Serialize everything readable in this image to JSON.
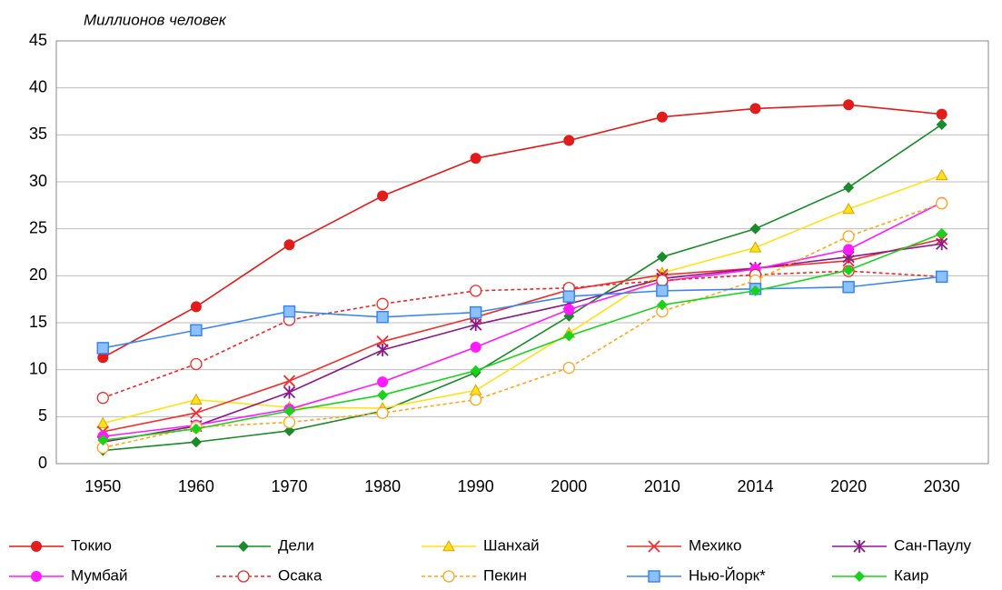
{
  "chart_data": {
    "type": "line",
    "y_label": "Миллионов человек",
    "categories": [
      "1950",
      "1960",
      "1970",
      "1980",
      "1990",
      "2000",
      "2010",
      "2014",
      "2020",
      "2030"
    ],
    "ylim": [
      0,
      45
    ],
    "yticks": [
      0,
      5,
      10,
      15,
      20,
      25,
      30,
      35,
      40,
      45
    ],
    "grid": true,
    "series": [
      {
        "name": "Токио",
        "color": "#e21b1b",
        "marker": "circle",
        "values": [
          11.3,
          16.7,
          23.3,
          28.5,
          32.5,
          34.4,
          36.9,
          37.8,
          38.2,
          37.2
        ]
      },
      {
        "name": "Дели",
        "color": "#1a8a2a",
        "marker": "diamond",
        "values": [
          1.4,
          2.3,
          3.5,
          5.6,
          9.7,
          15.7,
          22.0,
          25.0,
          29.4,
          36.1
        ]
      },
      {
        "name": "Шанхай",
        "color": "#ffe21a",
        "marker": "triangle",
        "values": [
          4.3,
          6.8,
          6.0,
          5.9,
          7.8,
          13.9,
          20.3,
          23.0,
          27.1,
          30.7
        ]
      },
      {
        "name": "Мехико",
        "color": "#f03030",
        "marker": "x",
        "values": [
          3.4,
          5.4,
          8.8,
          13.0,
          15.6,
          18.5,
          20.1,
          20.8,
          21.6,
          23.9
        ]
      },
      {
        "name": "Сан-Паулу",
        "color": "#8b1a8b",
        "marker": "star",
        "values": [
          2.3,
          4.0,
          7.6,
          12.1,
          14.8,
          17.0,
          19.7,
          20.8,
          22.0,
          23.4
        ]
      },
      {
        "name": "Мумбай",
        "color": "#ff1aff",
        "marker": "circle",
        "values": [
          2.9,
          4.1,
          5.8,
          8.7,
          12.4,
          16.4,
          19.4,
          20.7,
          22.8,
          27.8
        ]
      },
      {
        "name": "Осака",
        "color": "#f02828",
        "marker": "open-circle",
        "dashed": true,
        "values": [
          7.0,
          10.6,
          15.3,
          17.0,
          18.4,
          18.7,
          19.5,
          20.1,
          20.5,
          19.9
        ]
      },
      {
        "name": "Пекин",
        "color": "#ffa51a",
        "marker": "open-circle",
        "dashed": true,
        "values": [
          1.7,
          3.9,
          4.4,
          5.4,
          6.8,
          10.2,
          16.2,
          19.5,
          24.2,
          27.7
        ]
      },
      {
        "name": "Нью-Йорк*",
        "color": "#3a86f0",
        "marker": "square",
        "values": [
          12.3,
          14.2,
          16.2,
          15.6,
          16.1,
          17.8,
          18.4,
          18.6,
          18.8,
          19.9
        ]
      },
      {
        "name": "Каир",
        "color": "#1ad21a",
        "marker": "diamond",
        "values": [
          2.5,
          3.7,
          5.6,
          7.3,
          9.9,
          13.6,
          16.9,
          18.4,
          20.6,
          24.5
        ]
      }
    ]
  }
}
